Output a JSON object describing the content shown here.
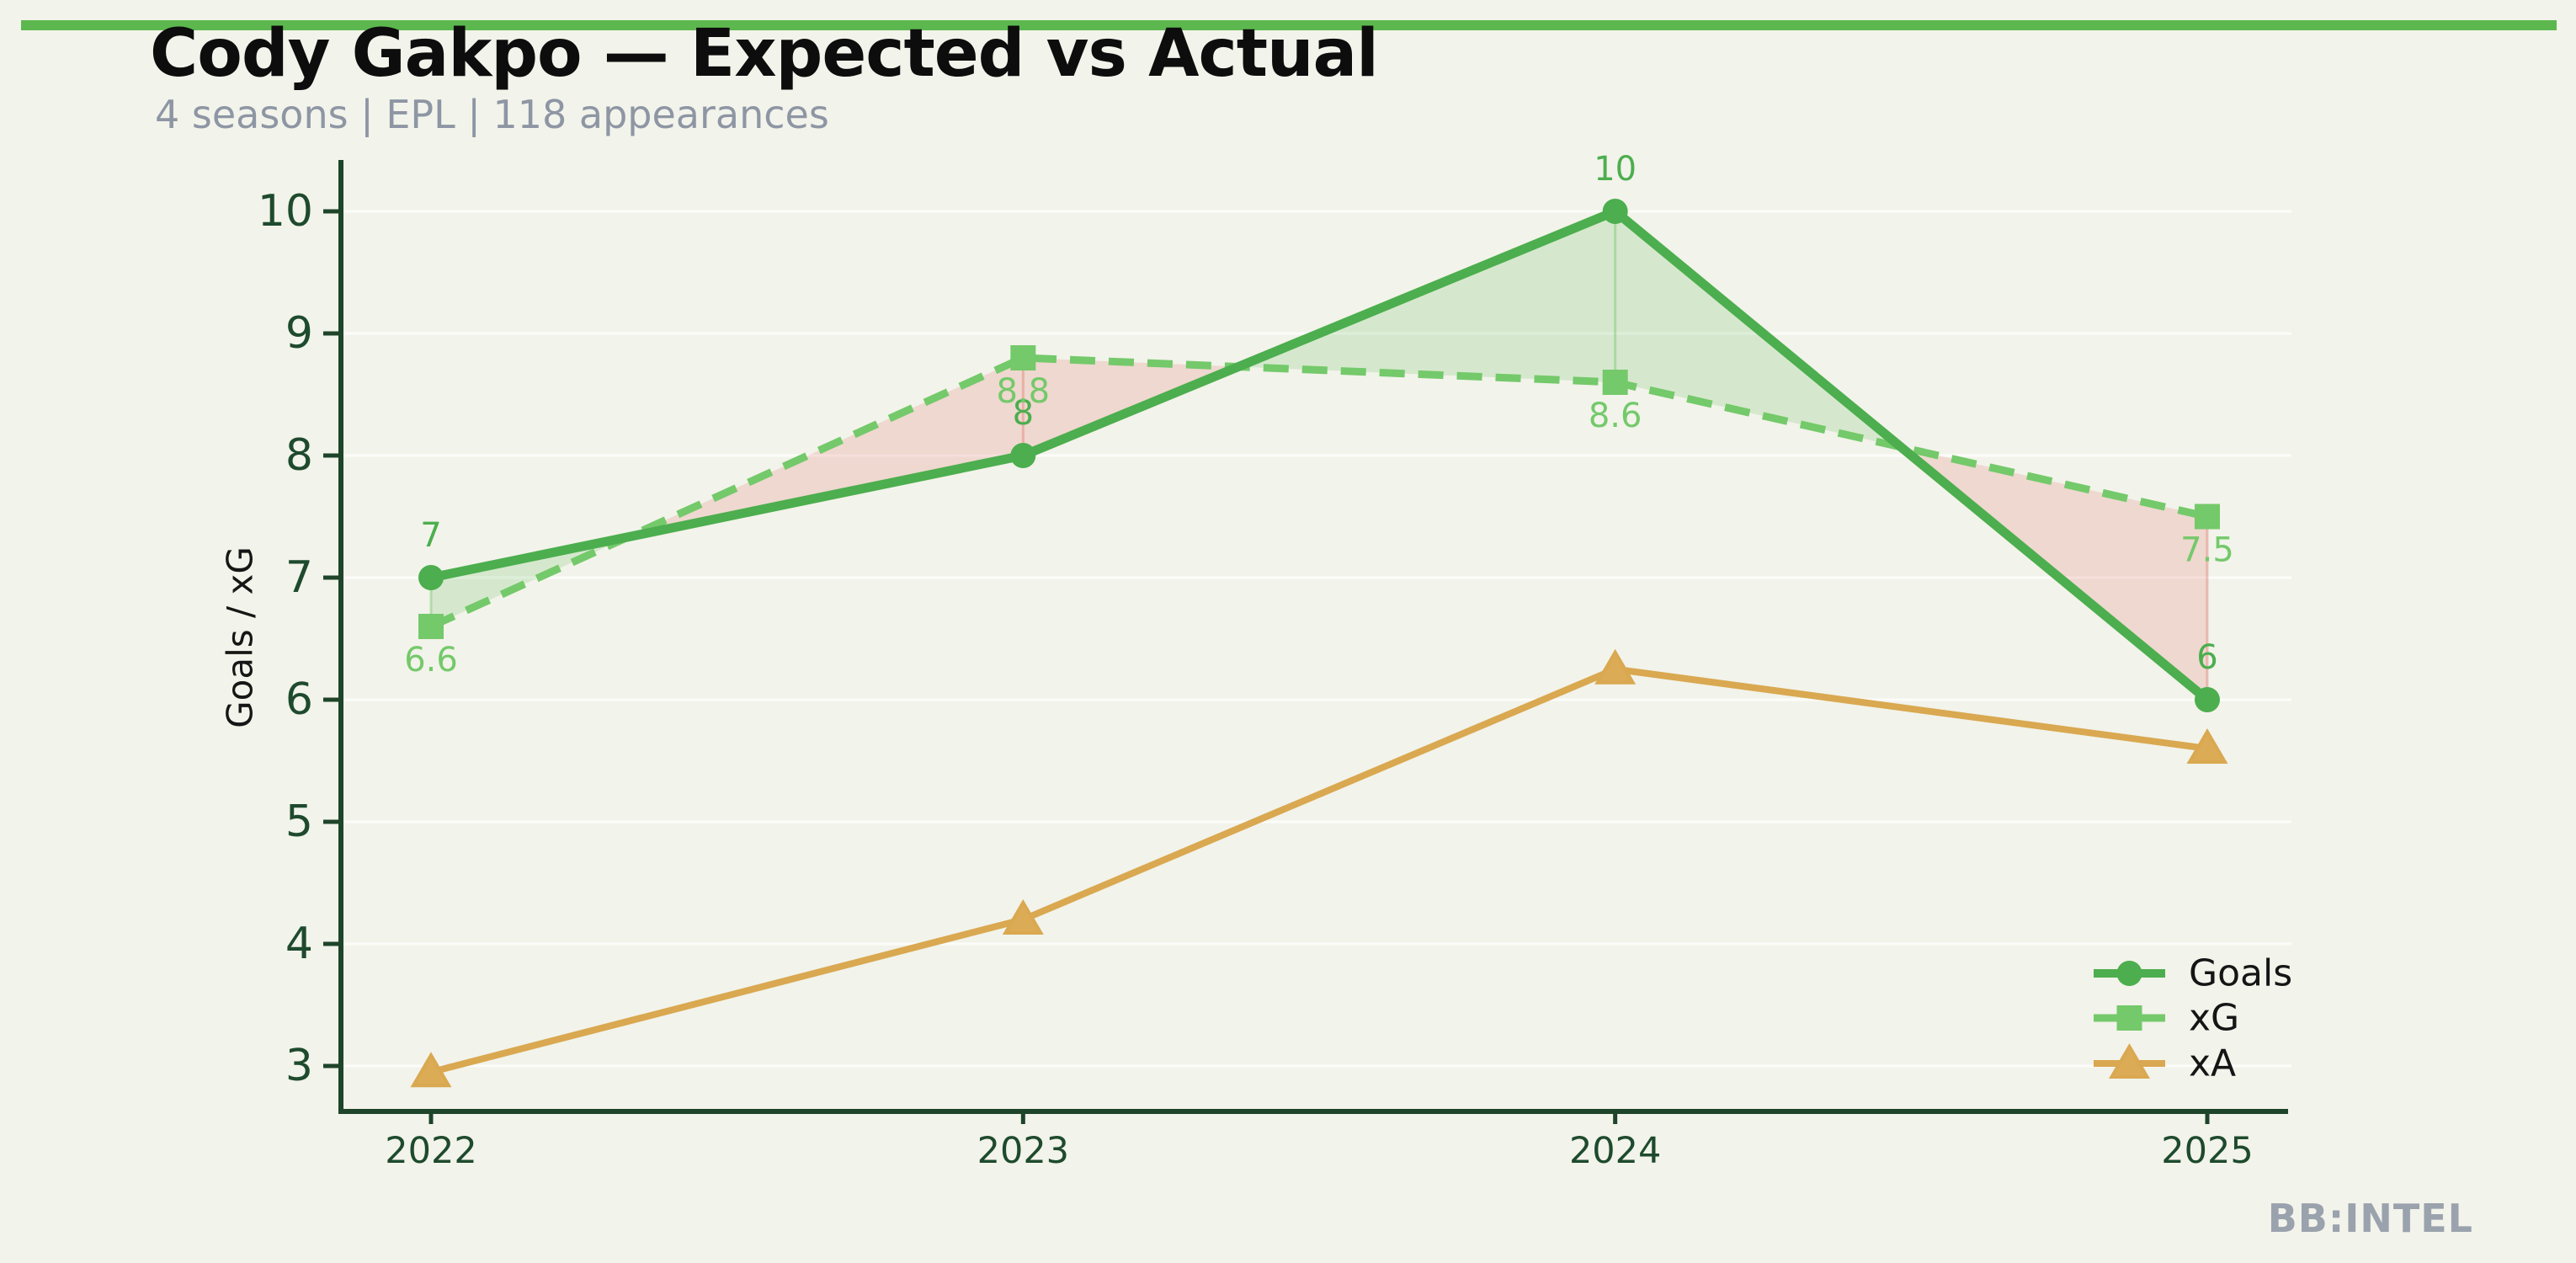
{
  "header": {
    "title": "Cody Gakpo — Expected vs Actual",
    "subtitle": "4 seasons | EPL | 118 appearances"
  },
  "footer": {
    "watermark": "BB:INTEL"
  },
  "theme": {
    "background": "#f2f3ea",
    "accent_bar": "#5cb84e",
    "axis": "#1e4429",
    "tick_label": "#1e4a2d",
    "ylabel_color": "#161616",
    "legend_text": "#151515",
    "grid": "rgba(255,255,255,0.75)",
    "fill_over": "rgba(102,190,92,0.20)",
    "fill_under": "rgba(224,110,100,0.20)",
    "fill_over_edge": "rgba(102,190,92,0.38)",
    "fill_under_edge": "rgba(224,110,100,0.38)"
  },
  "chart_data": {
    "type": "line",
    "title": "Cody Gakpo — Expected vs Actual",
    "subtitle": "4 seasons | EPL | 118 appearances",
    "categories": [
      "2022",
      "2023",
      "2024",
      "2025"
    ],
    "ylabel": "Goals / xG",
    "ylim": [
      2.6,
      10.4
    ],
    "yticks": [
      3,
      4,
      5,
      6,
      7,
      8,
      9,
      10
    ],
    "grid": "horizontal-faint",
    "legend_position": "lower right",
    "series": [
      {
        "name": "Goals",
        "values": [
          7,
          8,
          10,
          6
        ],
        "labels": [
          "7",
          "8",
          "10",
          "6"
        ],
        "color": "#4cae4e",
        "marker": "circle",
        "line_style": "solid"
      },
      {
        "name": "xG",
        "values": [
          6.6,
          8.8,
          8.6,
          7.5
        ],
        "labels": [
          "6.6",
          "8.8",
          "8.6",
          "7.5"
        ],
        "color": "#74c96a",
        "marker": "square",
        "line_style": "dashed"
      },
      {
        "name": "xA",
        "values": [
          2.95,
          4.2,
          6.25,
          5.6
        ],
        "labels": null,
        "color": "#d9a850",
        "marker": "triangle",
        "line_style": "solid"
      }
    ],
    "fill_between": {
      "upper": "Goals",
      "lower": "xG",
      "positive_color": "light-green",
      "negative_color": "light-red"
    }
  }
}
